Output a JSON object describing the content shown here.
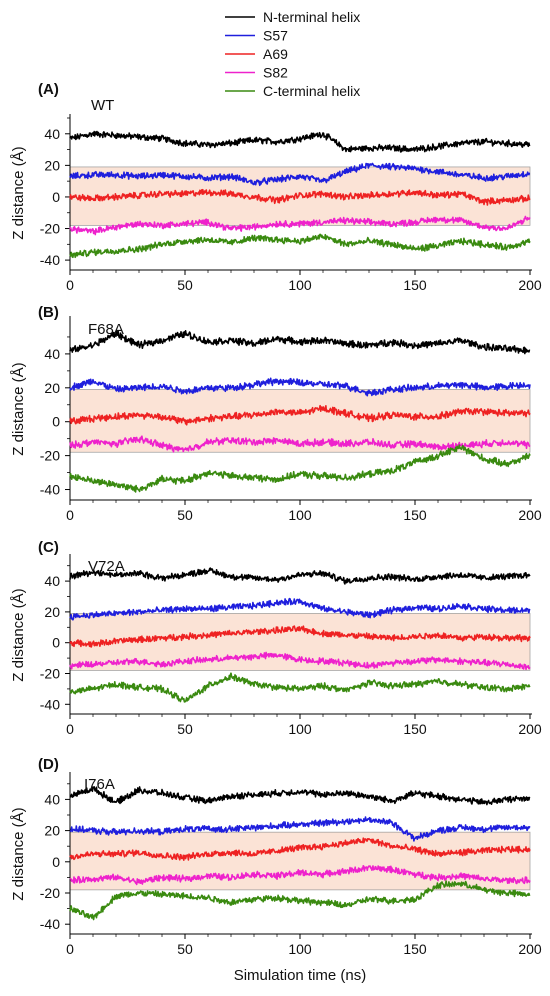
{
  "legend": [
    {
      "name": "N-terminal helix",
      "color": "#000000"
    },
    {
      "name": "S57",
      "color": "#1f1fdd"
    },
    {
      "name": "A69",
      "color": "#ee2222"
    },
    {
      "name": "S82",
      "color": "#ee22cc"
    },
    {
      "name": "C-terminal helix",
      "color": "#3a8a10"
    }
  ],
  "xlabel": "Simulation time (ns)",
  "ylabel": "Z distance (Å)",
  "band_color": "#fbe3d6",
  "chart_data": [
    {
      "type": "line",
      "panel": "(A)",
      "title": "WT",
      "xlim": [
        0,
        200
      ],
      "ylim": [
        -45,
        50
      ],
      "xticks": [
        0,
        50,
        100,
        150,
        200
      ],
      "yticks": [
        -40,
        -20,
        0,
        20,
        40
      ],
      "band": [
        -18,
        19
      ],
      "series": [
        {
          "name": "N-terminal helix",
          "x": [
            0,
            10,
            20,
            30,
            40,
            50,
            60,
            70,
            80,
            90,
            100,
            110,
            120,
            130,
            140,
            150,
            160,
            170,
            180,
            190,
            200
          ],
          "y": [
            37,
            40,
            39,
            38,
            37,
            34,
            33,
            34,
            36,
            35,
            37,
            40,
            30,
            31,
            31,
            30,
            32,
            34,
            35,
            34,
            33
          ]
        },
        {
          "name": "S57",
          "x": [
            0,
            10,
            20,
            30,
            40,
            50,
            60,
            70,
            80,
            90,
            100,
            110,
            120,
            130,
            140,
            150,
            160,
            170,
            180,
            190,
            200
          ],
          "y": [
            13,
            14,
            14,
            13,
            14,
            13,
            12,
            13,
            9,
            11,
            13,
            10,
            16,
            20,
            19,
            18,
            16,
            14,
            12,
            13,
            15
          ]
        },
        {
          "name": "A69",
          "x": [
            0,
            10,
            20,
            30,
            40,
            50,
            60,
            70,
            80,
            90,
            100,
            110,
            120,
            130,
            140,
            150,
            160,
            170,
            180,
            190,
            200
          ],
          "y": [
            0,
            -1,
            0,
            1,
            2,
            2,
            3,
            2,
            0,
            -2,
            1,
            2,
            0,
            1,
            2,
            3,
            1,
            2,
            -3,
            -2,
            -1
          ]
        },
        {
          "name": "S82",
          "x": [
            0,
            10,
            20,
            30,
            40,
            50,
            60,
            70,
            80,
            90,
            100,
            110,
            120,
            130,
            140,
            150,
            160,
            170,
            180,
            190,
            200
          ],
          "y": [
            -20,
            -22,
            -19,
            -17,
            -18,
            -17,
            -16,
            -20,
            -19,
            -17,
            -17,
            -16,
            -15,
            -16,
            -17,
            -16,
            -14,
            -15,
            -19,
            -20,
            -13
          ]
        },
        {
          "name": "C-terminal helix",
          "x": [
            0,
            10,
            20,
            30,
            40,
            50,
            60,
            70,
            80,
            90,
            100,
            110,
            120,
            130,
            140,
            150,
            160,
            170,
            180,
            190,
            200
          ],
          "y": [
            -37,
            -35,
            -34,
            -33,
            -30,
            -28,
            -27,
            -29,
            -26,
            -27,
            -28,
            -25,
            -30,
            -28,
            -30,
            -33,
            -31,
            -28,
            -30,
            -32,
            -28
          ]
        }
      ]
    },
    {
      "type": "line",
      "panel": "(B)",
      "title": "F68A",
      "xlim": [
        0,
        200
      ],
      "ylim": [
        -45,
        60
      ],
      "xticks": [
        0,
        50,
        100,
        150,
        200
      ],
      "yticks": [
        -40,
        -20,
        0,
        20,
        40
      ],
      "band": [
        -18,
        19
      ],
      "series": [
        {
          "name": "N-terminal helix",
          "x": [
            0,
            10,
            20,
            30,
            40,
            50,
            60,
            70,
            80,
            90,
            100,
            110,
            120,
            130,
            140,
            150,
            160,
            170,
            180,
            190,
            200
          ],
          "y": [
            42,
            45,
            52,
            45,
            48,
            52,
            47,
            48,
            46,
            49,
            47,
            48,
            46,
            45,
            47,
            45,
            46,
            48,
            44,
            43,
            42
          ]
        },
        {
          "name": "S57",
          "x": [
            0,
            10,
            20,
            30,
            40,
            50,
            60,
            70,
            80,
            90,
            100,
            110,
            120,
            130,
            140,
            150,
            160,
            170,
            180,
            190,
            200
          ],
          "y": [
            20,
            24,
            19,
            20,
            21,
            18,
            20,
            20,
            22,
            24,
            23,
            22,
            21,
            17,
            19,
            20,
            21,
            22,
            20,
            21,
            22
          ]
        },
        {
          "name": "A69",
          "x": [
            0,
            10,
            20,
            30,
            40,
            50,
            60,
            70,
            80,
            90,
            100,
            110,
            120,
            130,
            140,
            150,
            160,
            170,
            180,
            190,
            200
          ],
          "y": [
            0,
            2,
            3,
            4,
            3,
            0,
            2,
            3,
            4,
            6,
            5,
            8,
            5,
            2,
            4,
            3,
            3,
            6,
            6,
            5,
            5
          ]
        },
        {
          "name": "S82",
          "x": [
            0,
            10,
            20,
            30,
            40,
            50,
            60,
            70,
            80,
            90,
            100,
            110,
            120,
            130,
            140,
            150,
            160,
            170,
            180,
            190,
            200
          ],
          "y": [
            -14,
            -12,
            -13,
            -10,
            -14,
            -17,
            -12,
            -11,
            -12,
            -11,
            -13,
            -12,
            -13,
            -12,
            -14,
            -13,
            -15,
            -14,
            -13,
            -12,
            -14
          ]
        },
        {
          "name": "C-terminal helix",
          "x": [
            0,
            10,
            20,
            30,
            40,
            50,
            60,
            70,
            80,
            90,
            100,
            110,
            120,
            130,
            140,
            150,
            160,
            170,
            180,
            190,
            200
          ],
          "y": [
            -32,
            -35,
            -37,
            -40,
            -34,
            -35,
            -30,
            -32,
            -33,
            -34,
            -31,
            -32,
            -33,
            -31,
            -29,
            -24,
            -20,
            -15,
            -22,
            -25,
            -20
          ]
        }
      ]
    },
    {
      "type": "line",
      "panel": "(C)",
      "title": "V72A",
      "xlim": [
        0,
        200
      ],
      "ylim": [
        -45,
        55
      ],
      "xticks": [
        0,
        50,
        100,
        150,
        200
      ],
      "yticks": [
        -40,
        -20,
        0,
        20,
        40
      ],
      "band": [
        -18,
        19
      ],
      "series": [
        {
          "name": "N-terminal helix",
          "x": [
            0,
            10,
            20,
            30,
            40,
            50,
            60,
            70,
            80,
            90,
            100,
            110,
            120,
            130,
            140,
            150,
            160,
            170,
            180,
            190,
            200
          ],
          "y": [
            43,
            46,
            44,
            45,
            42,
            44,
            47,
            43,
            42,
            41,
            44,
            45,
            40,
            42,
            43,
            41,
            43,
            44,
            42,
            43,
            44
          ]
        },
        {
          "name": "S57",
          "x": [
            0,
            10,
            20,
            30,
            40,
            50,
            60,
            70,
            80,
            90,
            100,
            110,
            120,
            130,
            140,
            150,
            160,
            170,
            180,
            190,
            200
          ],
          "y": [
            17,
            18,
            19,
            20,
            21,
            22,
            22,
            23,
            24,
            26,
            27,
            22,
            20,
            18,
            21,
            23,
            22,
            24,
            22,
            21,
            21
          ]
        },
        {
          "name": "A69",
          "x": [
            0,
            10,
            20,
            30,
            40,
            50,
            60,
            70,
            80,
            90,
            100,
            110,
            120,
            130,
            140,
            150,
            160,
            170,
            180,
            190,
            200
          ],
          "y": [
            0,
            -1,
            1,
            2,
            3,
            4,
            5,
            6,
            7,
            8,
            9,
            6,
            5,
            4,
            3,
            4,
            5,
            3,
            4,
            3,
            3
          ]
        },
        {
          "name": "S82",
          "x": [
            0,
            10,
            20,
            30,
            40,
            50,
            60,
            70,
            80,
            90,
            100,
            110,
            120,
            130,
            140,
            150,
            160,
            170,
            180,
            190,
            200
          ],
          "y": [
            -15,
            -14,
            -13,
            -12,
            -14,
            -12,
            -11,
            -10,
            -9,
            -8,
            -11,
            -12,
            -13,
            -15,
            -13,
            -12,
            -11,
            -12,
            -13,
            -14,
            -16
          ]
        },
        {
          "name": "C-terminal helix",
          "x": [
            0,
            10,
            20,
            30,
            40,
            50,
            60,
            70,
            80,
            90,
            100,
            110,
            120,
            130,
            140,
            150,
            160,
            170,
            180,
            190,
            200
          ],
          "y": [
            -32,
            -30,
            -27,
            -29,
            -30,
            -38,
            -28,
            -22,
            -27,
            -29,
            -30,
            -28,
            -31,
            -26,
            -28,
            -27,
            -25,
            -27,
            -29,
            -30,
            -28
          ]
        }
      ]
    },
    {
      "type": "line",
      "panel": "(D)",
      "title": "I76A",
      "xlim": [
        0,
        200
      ],
      "ylim": [
        -45,
        55
      ],
      "xticks": [
        0,
        50,
        100,
        150,
        200
      ],
      "yticks": [
        -40,
        -20,
        0,
        20,
        40
      ],
      "band": [
        -18,
        19
      ],
      "series": [
        {
          "name": "N-terminal helix",
          "x": [
            0,
            10,
            20,
            30,
            40,
            50,
            60,
            70,
            80,
            90,
            100,
            110,
            120,
            130,
            140,
            150,
            160,
            170,
            180,
            190,
            200
          ],
          "y": [
            42,
            47,
            38,
            46,
            44,
            41,
            39,
            42,
            43,
            44,
            45,
            43,
            44,
            42,
            39,
            44,
            42,
            40,
            38,
            40,
            41
          ]
        },
        {
          "name": "S57",
          "x": [
            0,
            10,
            20,
            30,
            40,
            50,
            60,
            70,
            80,
            90,
            100,
            110,
            120,
            130,
            140,
            150,
            160,
            170,
            180,
            190,
            200
          ],
          "y": [
            21,
            20,
            19,
            20,
            19,
            21,
            21,
            21,
            22,
            23,
            24,
            25,
            26,
            27,
            25,
            15,
            20,
            22,
            21,
            22,
            22
          ]
        },
        {
          "name": "A69",
          "x": [
            0,
            10,
            20,
            30,
            40,
            50,
            60,
            70,
            80,
            90,
            100,
            110,
            120,
            130,
            140,
            150,
            160,
            170,
            180,
            190,
            200
          ],
          "y": [
            3,
            5,
            5,
            6,
            4,
            3,
            5,
            6,
            5,
            7,
            9,
            10,
            12,
            14,
            10,
            8,
            5,
            6,
            7,
            8,
            8
          ]
        },
        {
          "name": "S82",
          "x": [
            0,
            10,
            20,
            30,
            40,
            50,
            60,
            70,
            80,
            90,
            100,
            110,
            120,
            130,
            140,
            150,
            160,
            170,
            180,
            190,
            200
          ],
          "y": [
            -12,
            -11,
            -10,
            -13,
            -10,
            -11,
            -9,
            -10,
            -8,
            -9,
            -7,
            -8,
            -6,
            -4,
            -5,
            -8,
            -10,
            -9,
            -11,
            -12,
            -12
          ]
        },
        {
          "name": "C-terminal helix",
          "x": [
            0,
            10,
            20,
            30,
            40,
            50,
            60,
            70,
            80,
            90,
            100,
            110,
            120,
            130,
            140,
            150,
            160,
            170,
            180,
            190,
            200
          ],
          "y": [
            -30,
            -36,
            -22,
            -20,
            -21,
            -22,
            -23,
            -26,
            -24,
            -23,
            -25,
            -26,
            -28,
            -24,
            -25,
            -24,
            -15,
            -14,
            -18,
            -20,
            -21
          ]
        }
      ]
    }
  ]
}
